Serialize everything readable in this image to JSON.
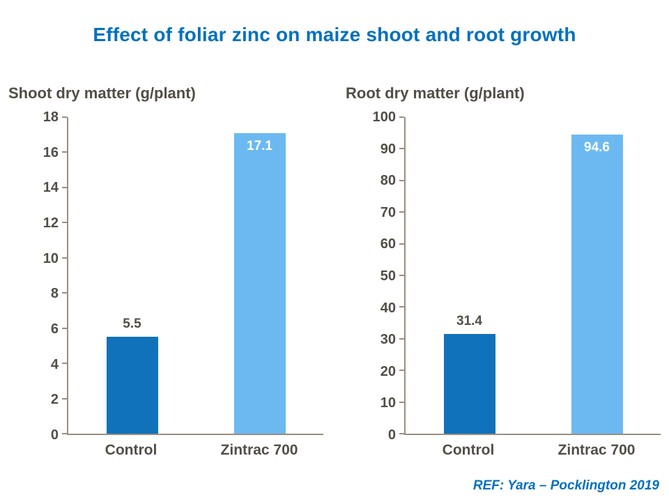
{
  "page": {
    "title": "Effect of foliar zinc on maize shoot and root growth",
    "reference": "REF: Yara – Pocklington 2019"
  },
  "colors": {
    "title_blue": "#0070C0",
    "axis_line": "#998F80",
    "axis_text": "#514E47",
    "bar_control": "#1072BA",
    "bar_zintrac": "#6CB9F1",
    "label_inside": "#FFFFFF"
  },
  "chart_data": [
    {
      "type": "bar",
      "title": "Shoot dry matter (g/plant)",
      "categories": [
        "Control",
        "Zintrac 700"
      ],
      "values": [
        5.5,
        17.1
      ],
      "value_labels": [
        "5.5",
        "17.1"
      ],
      "label_positions": [
        "above",
        "inside"
      ],
      "bar_colors": [
        "#1072BA",
        "#6CB9F1"
      ],
      "ylim": [
        0,
        18
      ],
      "yticks": [
        0,
        2,
        4,
        6,
        8,
        10,
        12,
        14,
        16,
        18
      ],
      "grid": false,
      "legend": "none"
    },
    {
      "type": "bar",
      "title": "Root dry matter (g/plant)",
      "categories": [
        "Control",
        "Zintrac 700"
      ],
      "values": [
        31.4,
        94.6
      ],
      "value_labels": [
        "31.4",
        "94.6"
      ],
      "label_positions": [
        "above",
        "inside"
      ],
      "bar_colors": [
        "#1072BA",
        "#6CB9F1"
      ],
      "ylim": [
        0,
        100
      ],
      "yticks": [
        0,
        10,
        20,
        30,
        40,
        50,
        60,
        70,
        80,
        90,
        100
      ],
      "grid": false,
      "legend": "none"
    }
  ]
}
